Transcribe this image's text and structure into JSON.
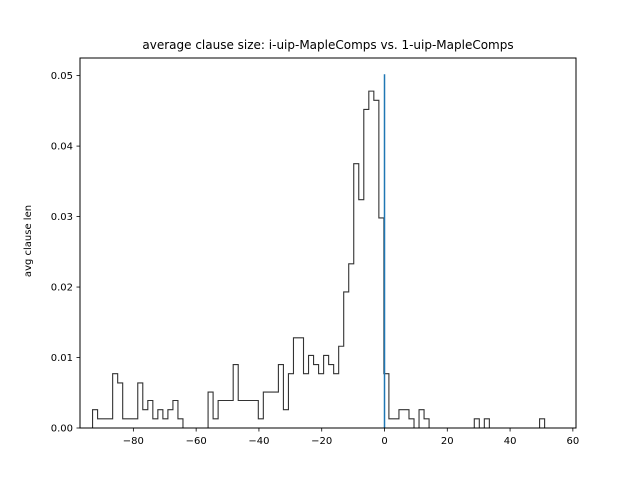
{
  "chart_data": {
    "type": "histogram",
    "title": "average clause size: i-uip-MapleComps vs. 1-uip-MapleComps",
    "xlabel": "",
    "ylabel": "avg clause len",
    "xlim": [
      -97,
      61
    ],
    "ylim": [
      0,
      0.0525
    ],
    "x_ticks": [
      -80,
      -60,
      -40,
      -20,
      0,
      20,
      40,
      60
    ],
    "x_tick_labels": [
      "−80",
      "−60",
      "−40",
      "−20",
      "0",
      "20",
      "40",
      "60"
    ],
    "y_ticks": [
      0.0,
      0.01,
      0.02,
      0.03,
      0.04,
      0.05
    ],
    "y_tick_labels": [
      "0.00",
      "0.01",
      "0.02",
      "0.03",
      "0.04",
      "0.05"
    ],
    "grid": false,
    "bin_start": -93,
    "bin_width": 1.6,
    "values": [
      0.0026,
      0.0013,
      0.0013,
      0.0013,
      0.0077,
      0.0064,
      0.0013,
      0.0013,
      0.0013,
      0.0064,
      0.0026,
      0.0039,
      0.0013,
      0.0026,
      0.0013,
      0.0026,
      0.0039,
      0.0013,
      0.0,
      0.0,
      0.0,
      0.0,
      0.0,
      0.0051,
      0.0013,
      0.0039,
      0.0039,
      0.0039,
      0.009,
      0.0039,
      0.0039,
      0.0039,
      0.0039,
      0.0013,
      0.0051,
      0.0051,
      0.0051,
      0.009,
      0.0026,
      0.0077,
      0.0128,
      0.0128,
      0.0077,
      0.0103,
      0.009,
      0.0077,
      0.0103,
      0.009,
      0.0077,
      0.0116,
      0.0193,
      0.0233,
      0.0375,
      0.0324,
      0.0452,
      0.0478,
      0.0465,
      0.0298,
      0.0077,
      0.0013,
      0.0013,
      0.0026,
      0.0026,
      0.0013,
      0.0,
      0.0026,
      0.0013,
      0.0,
      0.0,
      0.0,
      0.0,
      0.0,
      0.0,
      0.0,
      0.0,
      0.0,
      0.0013,
      0.0,
      0.0013,
      0.0,
      0.0,
      0.0,
      0.0,
      0.0,
      0.0,
      0.0,
      0.0,
      0.0,
      0.0,
      0.0013
    ],
    "reference_line": {
      "x": 0,
      "y_range": [
        0,
        0.0502
      ],
      "color": "#1f77b4"
    },
    "step_color": "#333333"
  }
}
